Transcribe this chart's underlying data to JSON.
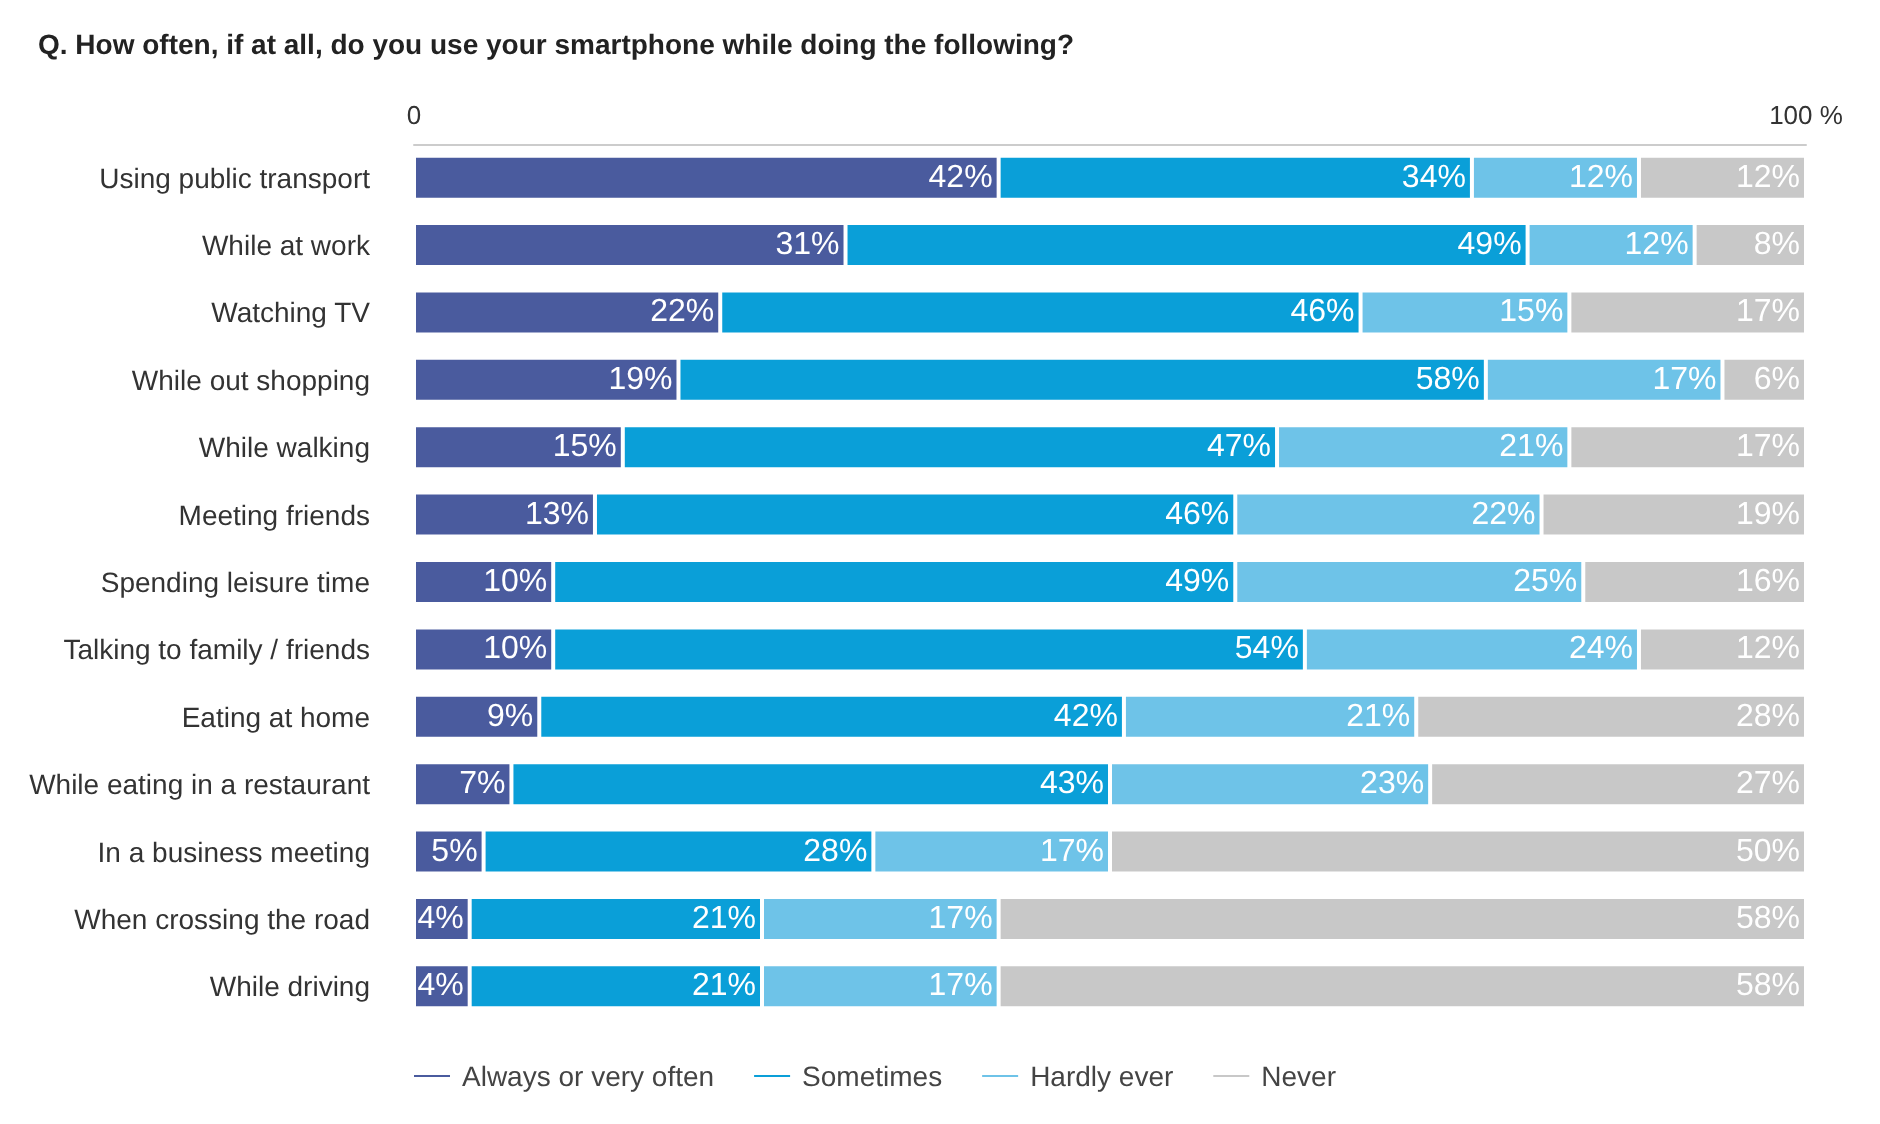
{
  "chart_data": {
    "type": "bar",
    "orientation": "horizontal",
    "stacked": true,
    "title": "Q. How often, if at all, do you use your smartphone while doing the following?",
    "categories": [
      "Using public transport",
      "While at work",
      "Watching TV",
      "While out shopping",
      "While walking",
      "Meeting friends",
      "Spending leisure time",
      "Talking to family / friends",
      "Eating at home",
      "While eating in a restaurant",
      "In a business meeting",
      "When crossing the road",
      "While driving"
    ],
    "series": [
      {
        "name": "Always or very often",
        "color": "#4a5b9e",
        "values": [
          42,
          31,
          22,
          19,
          15,
          13,
          10,
          10,
          9,
          7,
          5,
          4,
          4
        ],
        "value_labels": [
          "42%",
          "31%",
          "22%",
          "19%",
          "15%",
          "13%",
          "10%",
          "10%",
          "9%",
          "7%",
          "5%",
          "4%",
          "4%"
        ]
      },
      {
        "name": "Sometimes",
        "color": "#0a9fd8",
        "values": [
          34,
          49,
          46,
          58,
          47,
          46,
          49,
          54,
          42,
          43,
          28,
          21,
          21
        ],
        "value_labels": [
          "34%",
          "49%",
          "46%",
          "58%",
          "47%",
          "46%",
          "49%",
          "54%",
          "42%",
          "43%",
          "28%",
          "21%",
          "21%"
        ]
      },
      {
        "name": "Hardly ever",
        "color": "#6ec3e8",
        "values": [
          12,
          12,
          15,
          17,
          21,
          22,
          25,
          24,
          21,
          23,
          17,
          17,
          17
        ],
        "value_labels": [
          "12%",
          "12%",
          "15%",
          "17%",
          "21%",
          "22%",
          "25%",
          "24%",
          "21%",
          "23%",
          "17%",
          "17%",
          "17%"
        ]
      },
      {
        "name": "Never",
        "color": "#c8c8c8",
        "values": [
          12,
          8,
          17,
          6,
          17,
          19,
          16,
          12,
          28,
          27,
          50,
          58,
          58
        ],
        "value_labels": [
          "12%",
          "8%",
          "17%",
          "6%",
          "17%",
          "19%",
          "16%",
          "12%",
          "28%",
          "27%",
          "50%",
          "58%",
          "58%"
        ]
      }
    ],
    "xlim": [
      0,
      100
    ],
    "xticks": [
      0,
      {
        "value": 100,
        "label": "100 %"
      }
    ],
    "grid": false,
    "legend": "bottom"
  }
}
